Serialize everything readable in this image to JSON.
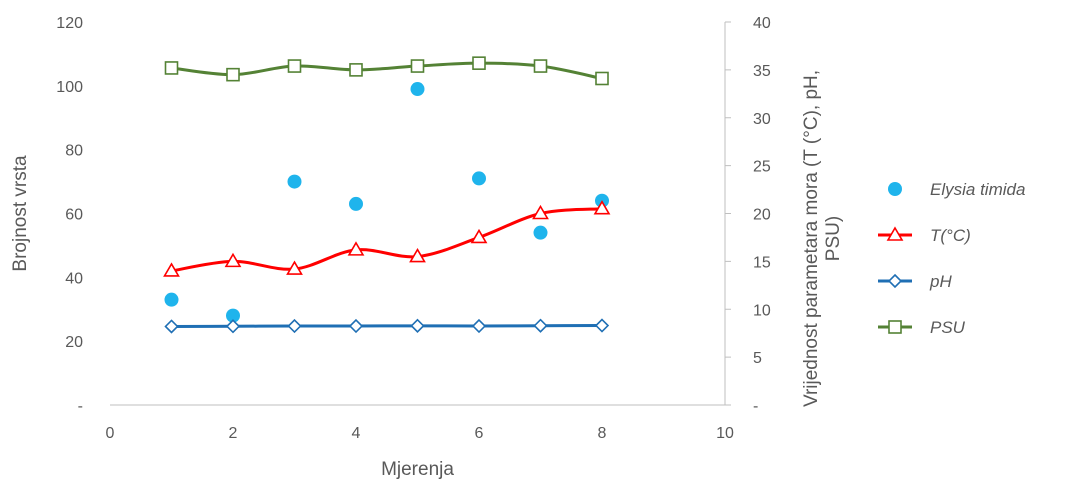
{
  "chart_data": {
    "type": "scatter",
    "xlabel": "Mjerenja",
    "ylabel": "Brojnost vrsta",
    "y2label_lines": [
      "Vrijednost parametara mora (T (°C), pH,",
      "PSU)"
    ],
    "xlim": [
      0,
      10
    ],
    "xticks": [
      "0",
      "2",
      "4",
      "6",
      "8",
      "10"
    ],
    "ylim": [
      0,
      120
    ],
    "yticks": [
      "-",
      "20",
      "40",
      "60",
      "80",
      "100",
      "120"
    ],
    "y2lim": [
      0,
      40
    ],
    "y2ticks": [
      "-",
      "5",
      "10",
      "15",
      "20",
      "25",
      "30",
      "35",
      "40"
    ],
    "grid": false,
    "legend_position": "right",
    "series": [
      {
        "name": "Elysia timida",
        "axis": "left",
        "kind": "scatter",
        "marker": "circle",
        "color": "#1fb4ec",
        "x": [
          1,
          2,
          3,
          4,
          5,
          6,
          7,
          8
        ],
        "y": [
          33,
          28,
          70,
          63,
          99,
          71,
          54,
          64
        ]
      },
      {
        "name": "T(°C)",
        "axis": "right",
        "kind": "line",
        "marker": "triangle",
        "color": "#ff0000",
        "x": [
          1,
          2,
          3,
          4,
          5,
          6,
          7,
          8
        ],
        "y": [
          14.0,
          15.0,
          14.2,
          16.2,
          15.5,
          17.5,
          20.0,
          20.5
        ]
      },
      {
        "name": "pH",
        "axis": "right",
        "kind": "line",
        "marker": "diamond",
        "color": "#1f6fb4",
        "x": [
          1,
          2,
          3,
          4,
          5,
          6,
          7,
          8
        ],
        "y": [
          8.2,
          8.22,
          8.25,
          8.25,
          8.27,
          8.25,
          8.28,
          8.3
        ]
      },
      {
        "name": "PSU",
        "axis": "right",
        "kind": "line",
        "marker": "square",
        "color": "#548235",
        "x": [
          1,
          2,
          3,
          4,
          5,
          6,
          7,
          8
        ],
        "y": [
          35.2,
          34.5,
          35.4,
          35.0,
          35.4,
          35.7,
          35.4,
          34.1
        ]
      }
    ]
  }
}
